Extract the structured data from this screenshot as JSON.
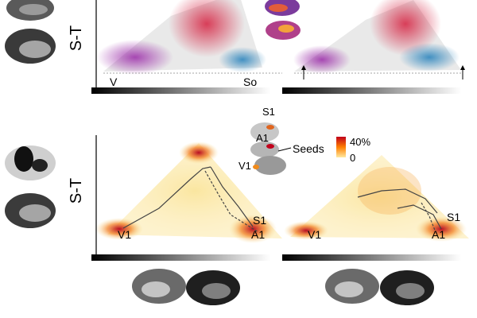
{
  "figure": {
    "axis_label_top": "S-T",
    "axis_label_bottom": "S-T",
    "top_left_labels": {
      "left": "V",
      "right": "So"
    },
    "bottom_left_labels": {
      "s1": "S1",
      "v1": "V1",
      "a1": "A1"
    },
    "bottom_right_labels": {
      "s1": "S1",
      "v1": "V1",
      "a1": "A1"
    },
    "inset_labels": {
      "s1": "S1",
      "a1": "A1",
      "v1": "V1",
      "seeds": "Seeds"
    },
    "colorbar": {
      "max_label": "40%",
      "min_label": "0",
      "colors": [
        "#c0001a",
        "#ff7f00",
        "#ffe9a0"
      ]
    }
  },
  "colors": {
    "purple": "#9a2aa8",
    "red": "#d5203f",
    "blue": "#2f86bd",
    "grey": "#c6c6c6",
    "heat_dark": "#b3001b",
    "heat_orange": "#f27b1a",
    "heat_yellow": "#f8e18e"
  }
}
